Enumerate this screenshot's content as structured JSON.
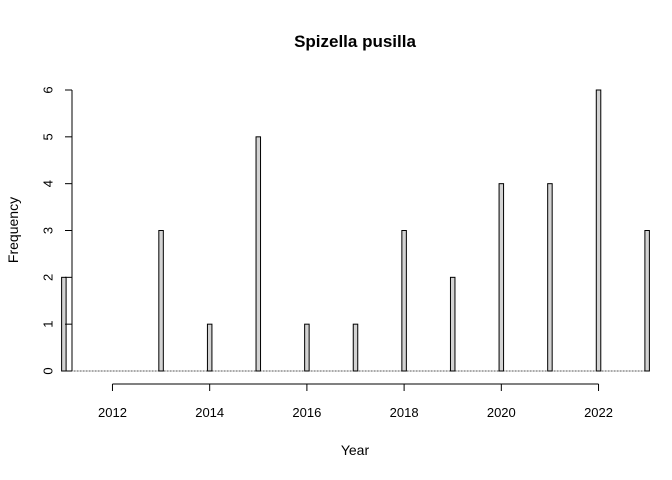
{
  "chart_data": {
    "type": "bar",
    "title": "Spizella pusilla",
    "xlabel": "Year",
    "ylabel": "Frequency",
    "xlim": [
      2010.9,
      2023.1
    ],
    "ylim": [
      0,
      6
    ],
    "x_ticks": [
      2012,
      2014,
      2016,
      2018,
      2020,
      2022
    ],
    "y_ticks": [
      0,
      1,
      2,
      3,
      4,
      5,
      6
    ],
    "grid": false,
    "legend": "none",
    "bar_fill": "#d3d3d3",
    "bar_stroke": "#000000",
    "series": [
      {
        "x": [
          2011,
          2013,
          2014,
          2015,
          2016,
          2017,
          2018,
          2019,
          2020,
          2021,
          2022,
          2023
        ],
        "values": [
          2,
          3,
          1,
          5,
          1,
          1,
          3,
          2,
          4,
          4,
          6,
          3
        ]
      }
    ]
  }
}
